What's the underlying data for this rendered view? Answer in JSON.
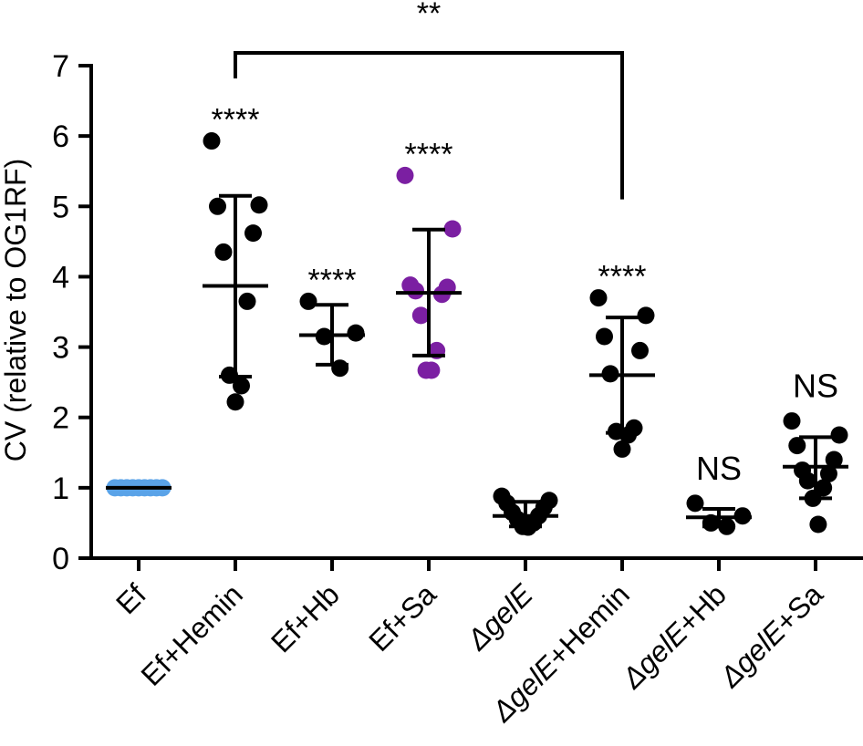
{
  "chart_data": {
    "type": "scatter",
    "title": "",
    "xlabel": "",
    "ylabel": "CV (relative to OG1RF)",
    "ylim": [
      0,
      7
    ],
    "yticks": [
      0,
      1,
      2,
      3,
      4,
      5,
      6,
      7
    ],
    "colors": {
      "default": "#000000",
      "Ef": "#5aa3e8",
      "Sa": "#7b1fa2"
    },
    "groups": [
      {
        "label": "Ef",
        "italic_prefix": "",
        "suffix": "Ef",
        "color": "#5aa3e8",
        "points": [
          1.0,
          1.0,
          1.0,
          1.0,
          1.0,
          1.0,
          1.0,
          1.0,
          1.0
        ],
        "mean": 1.0,
        "sd_low": 1.0,
        "sd_high": 1.0,
        "sig": ""
      },
      {
        "label": "Ef+Hemin",
        "italic_prefix": "",
        "suffix": "Ef+Hemin",
        "color": "#000000",
        "points": [
          5.93,
          5.02,
          5.0,
          4.62,
          4.35,
          3.65,
          2.6,
          2.45,
          2.22
        ],
        "mean": 3.87,
        "sd_low": 2.58,
        "sd_high": 5.15,
        "sig": "****"
      },
      {
        "label": "Ef+Hb",
        "italic_prefix": "",
        "suffix": "Ef+Hb",
        "color": "#000000",
        "points": [
          3.65,
          3.2,
          3.15,
          2.7
        ],
        "mean": 3.17,
        "sd_low": 2.75,
        "sd_high": 3.6,
        "sig": "****"
      },
      {
        "label": "Ef+Sa",
        "italic_prefix": "",
        "suffix": "Ef+Sa",
        "color": "#7b1fa2",
        "points": [
          5.44,
          4.68,
          3.88,
          3.85,
          3.8,
          3.75,
          3.45,
          2.95,
          2.67,
          2.67
        ],
        "mean": 3.77,
        "sd_low": 2.88,
        "sd_high": 4.67,
        "sig": "****"
      },
      {
        "label": "ΔgelE",
        "italic_prefix": "ΔgelE",
        "suffix": "",
        "color": "#000000",
        "points": [
          0.88,
          0.82,
          0.78,
          0.72,
          0.65,
          0.6,
          0.55,
          0.5,
          0.45,
          0.44
        ],
        "mean": 0.6,
        "sd_low": 0.45,
        "sd_high": 0.8,
        "sig": ""
      },
      {
        "label": "ΔgelE+Hemin",
        "italic_prefix": "ΔgelE",
        "suffix": "+Hemin",
        "color": "#000000",
        "points": [
          3.7,
          3.45,
          3.15,
          2.95,
          2.62,
          1.85,
          1.8,
          1.75,
          1.55
        ],
        "mean": 2.6,
        "sd_low": 1.78,
        "sd_high": 3.42,
        "sig": "****"
      },
      {
        "label": "ΔgelE+Hb",
        "italic_prefix": "ΔgelE",
        "suffix": "+Hb",
        "color": "#000000",
        "points": [
          0.78,
          0.6,
          0.5,
          0.45
        ],
        "mean": 0.58,
        "sd_low": 0.45,
        "sd_high": 0.7,
        "sig": "NS"
      },
      {
        "label": "ΔgelE+Sa",
        "italic_prefix": "ΔgelE",
        "suffix": "+Sa",
        "color": "#000000",
        "points": [
          1.95,
          1.75,
          1.6,
          1.4,
          1.25,
          1.2,
          1.1,
          1.0,
          0.85,
          0.48
        ],
        "mean": 1.3,
        "sd_low": 0.85,
        "sd_high": 1.72,
        "sig": "NS"
      }
    ],
    "comparison": {
      "from": 1,
      "to": 5,
      "label": "**",
      "y": 7.0
    }
  }
}
